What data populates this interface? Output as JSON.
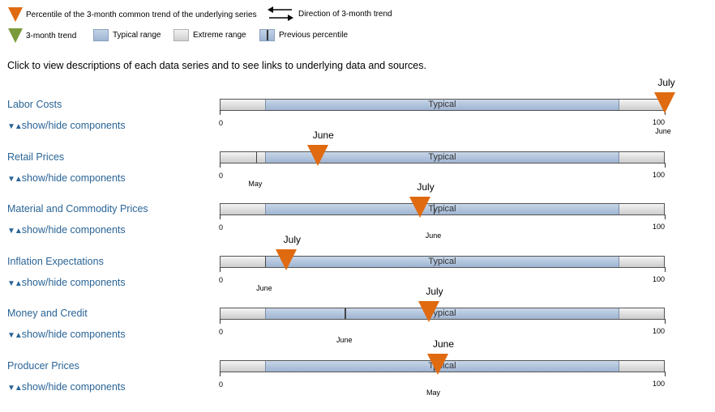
{
  "legend": {
    "percentile": "Percentile of the 3-month common trend of the underlying series",
    "direction": "Direction of 3-month trend",
    "trend": "3-month trend",
    "typical": "Typical range",
    "extreme": "Extreme range",
    "previous": "Previous percentile"
  },
  "intro": "Click to view descriptions of each data series and to see links to underlying data and sources.",
  "toggle_label": "show/hide components",
  "typical_label": "Typical",
  "scale": {
    "min": "0",
    "max": "100"
  },
  "series": [
    {
      "name": "Labor Costs",
      "current_pct": 100,
      "current_label": "July",
      "prev_pct": 100,
      "prev_label": "June"
    },
    {
      "name": "Retail Prices",
      "current_pct": 22,
      "current_label": "June",
      "prev_pct": 8,
      "prev_label": "May"
    },
    {
      "name": "Material and Commodity Prices",
      "current_pct": 45,
      "current_label": "July",
      "prev_pct": 48,
      "prev_label": "June"
    },
    {
      "name": "Inflation Expectations",
      "current_pct": 15,
      "current_label": "July",
      "prev_pct": 10,
      "prev_label": "June"
    },
    {
      "name": "Money and Credit",
      "current_pct": 47,
      "current_label": "July",
      "prev_pct": 28,
      "prev_label": "June"
    },
    {
      "name": "Producer Prices",
      "current_pct": 49,
      "current_label": "June",
      "prev_pct": 48,
      "prev_label": "May"
    }
  ],
  "colors": {
    "current_marker": "#e06a10",
    "trend_marker": "#7a9a3c",
    "link": "#2a6496"
  },
  "typical_range_pct": [
    10,
    90
  ]
}
